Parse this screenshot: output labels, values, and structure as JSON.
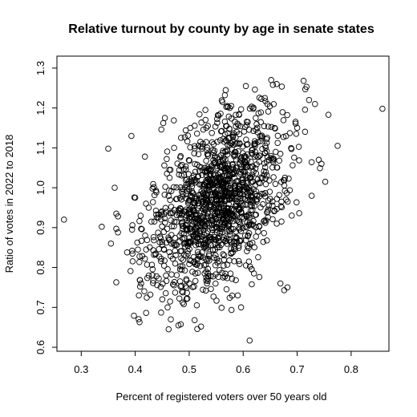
{
  "chart_data": {
    "type": "scatter",
    "title": "Relative turnout by county by age in senate states",
    "xlabel": "Percent of registered voters over 50 years old",
    "ylabel": "Ratio of votes in 2022 to 2018",
    "xlim": [
      0.255,
      0.87
    ],
    "ylim": [
      0.59,
      1.33
    ],
    "xticks": [
      "0.3",
      "0.4",
      "0.5",
      "0.6",
      "0.7",
      "0.8"
    ],
    "yticks": [
      "0.6",
      "0.7",
      "0.8",
      "0.9",
      "1.0",
      "1.1",
      "1.2",
      "1.3"
    ],
    "grid": false,
    "marker": "open-circle",
    "points": [
      [
        0.268,
        0.92
      ],
      [
        0.338,
        0.902
      ],
      [
        0.35,
        1.098
      ],
      [
        0.355,
        0.86
      ],
      [
        0.362,
        1.0
      ],
      [
        0.365,
        0.935
      ],
      [
        0.368,
        0.928
      ],
      [
        0.365,
        0.897
      ],
      [
        0.368,
        0.888
      ],
      [
        0.365,
        0.763
      ],
      [
        0.385,
        0.838
      ],
      [
        0.393,
        1.13
      ],
      [
        0.395,
        0.835
      ],
      [
        0.4,
        0.975
      ],
      [
        0.405,
        0.845
      ],
      [
        0.408,
        0.828
      ],
      [
        0.409,
        0.752
      ],
      [
        0.411,
        0.76
      ],
      [
        0.408,
        0.663
      ],
      [
        0.418,
        1.078
      ],
      [
        0.42,
        0.96
      ],
      [
        0.425,
        0.95
      ],
      [
        0.428,
        0.732
      ],
      [
        0.43,
        0.915
      ],
      [
        0.432,
        0.998
      ],
      [
        0.44,
        0.925
      ],
      [
        0.444,
        0.846
      ],
      [
        0.448,
        0.687
      ],
      [
        0.452,
        1.162
      ],
      [
        0.455,
        1.175
      ],
      [
        0.457,
        0.78
      ],
      [
        0.46,
        0.7
      ],
      [
        0.462,
        0.645
      ],
      [
        0.466,
        0.67
      ],
      [
        0.47,
        0.758
      ],
      [
        0.472,
        1.1
      ],
      [
        0.474,
        0.737
      ],
      [
        0.48,
        0.655
      ],
      [
        0.485,
        1.125
      ],
      [
        0.488,
        0.712
      ],
      [
        0.49,
        0.708
      ],
      [
        0.496,
        0.736
      ],
      [
        0.502,
        1.15
      ],
      [
        0.51,
        0.668
      ],
      [
        0.515,
        0.646
      ],
      [
        0.522,
        0.652
      ],
      [
        0.53,
        1.195
      ],
      [
        0.533,
        0.76
      ],
      [
        0.545,
        0.727
      ],
      [
        0.553,
        1.182
      ],
      [
        0.56,
        0.699
      ],
      [
        0.566,
        1.232
      ],
      [
        0.575,
        0.724
      ],
      [
        0.578,
        1.205
      ],
      [
        0.59,
        0.73
      ],
      [
        0.596,
        0.7
      ],
      [
        0.605,
        1.255
      ],
      [
        0.612,
        0.617
      ],
      [
        0.616,
        0.758
      ],
      [
        0.62,
        0.785
      ],
      [
        0.63,
        0.776
      ],
      [
        0.64,
        1.225
      ],
      [
        0.645,
        1.21
      ],
      [
        0.652,
        1.27
      ],
      [
        0.655,
        1.258
      ],
      [
        0.662,
        1.26
      ],
      [
        0.669,
        0.76
      ],
      [
        0.676,
        0.743
      ],
      [
        0.682,
        0.75
      ],
      [
        0.69,
        0.93
      ],
      [
        0.7,
        1.15
      ],
      [
        0.712,
        1.268
      ],
      [
        0.715,
        1.247
      ],
      [
        0.722,
        1.22
      ],
      [
        0.727,
        0.98
      ],
      [
        0.733,
        1.21
      ],
      [
        0.74,
        1.07
      ],
      [
        0.745,
        1.06
      ],
      [
        0.752,
        1.015
      ],
      [
        0.758,
        1.183
      ],
      [
        0.775,
        1.105
      ],
      [
        0.858,
        1.198
      ]
    ],
    "cloud": {
      "count": 1330,
      "center": [
        0.553,
        0.965
      ],
      "spread": [
        0.062,
        0.112
      ],
      "correlation": 0.45,
      "seed": 20221108
    }
  }
}
